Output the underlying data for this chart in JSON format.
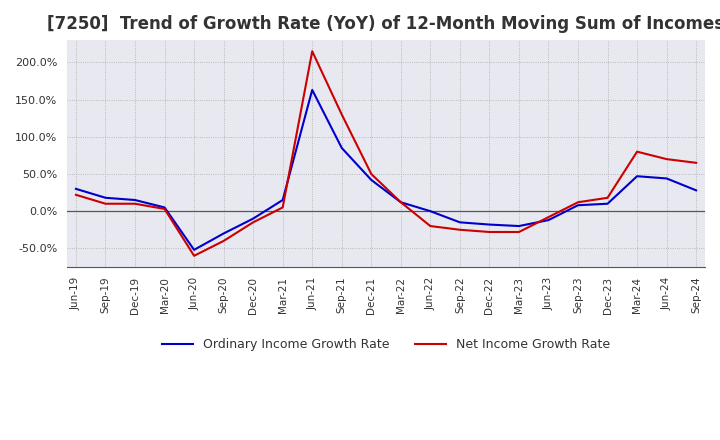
{
  "title": "[7250]  Trend of Growth Rate (YoY) of 12-Month Moving Sum of Incomes",
  "title_fontsize": 12,
  "ylim": [
    -75,
    230
  ],
  "yticks": [
    -50,
    0,
    50,
    100,
    150,
    200
  ],
  "background_color": "#ffffff",
  "grid_color": "#aaaaaa",
  "plot_bg_color": "#e8e8f0",
  "ordinary_color": "#0000cc",
  "net_color": "#cc0000",
  "legend_ordinary": "Ordinary Income Growth Rate",
  "legend_net": "Net Income Growth Rate",
  "x_labels": [
    "Jun-19",
    "Sep-19",
    "Dec-19",
    "Mar-20",
    "Jun-20",
    "Sep-20",
    "Dec-20",
    "Mar-21",
    "Jun-21",
    "Sep-21",
    "Dec-21",
    "Mar-22",
    "Jun-22",
    "Sep-22",
    "Dec-22",
    "Mar-23",
    "Jun-23",
    "Sep-23",
    "Dec-23",
    "Mar-24",
    "Jun-24",
    "Sep-24"
  ],
  "ordinary_income_growth": [
    30.0,
    18.0,
    15.0,
    5.0,
    -52.0,
    -30.0,
    -10.0,
    15.0,
    163.0,
    85.0,
    42.0,
    12.0,
    0.0,
    -15.0,
    -18.0,
    -20.0,
    -12.0,
    8.0,
    10.0,
    47.0,
    44.0,
    28.0
  ],
  "net_income_growth": [
    22.0,
    10.0,
    10.0,
    3.0,
    -60.0,
    -40.0,
    -15.0,
    5.0,
    215.0,
    130.0,
    50.0,
    12.0,
    -20.0,
    -25.0,
    -28.0,
    -28.0,
    -8.0,
    12.0,
    18.0,
    80.0,
    70.0,
    65.0
  ]
}
